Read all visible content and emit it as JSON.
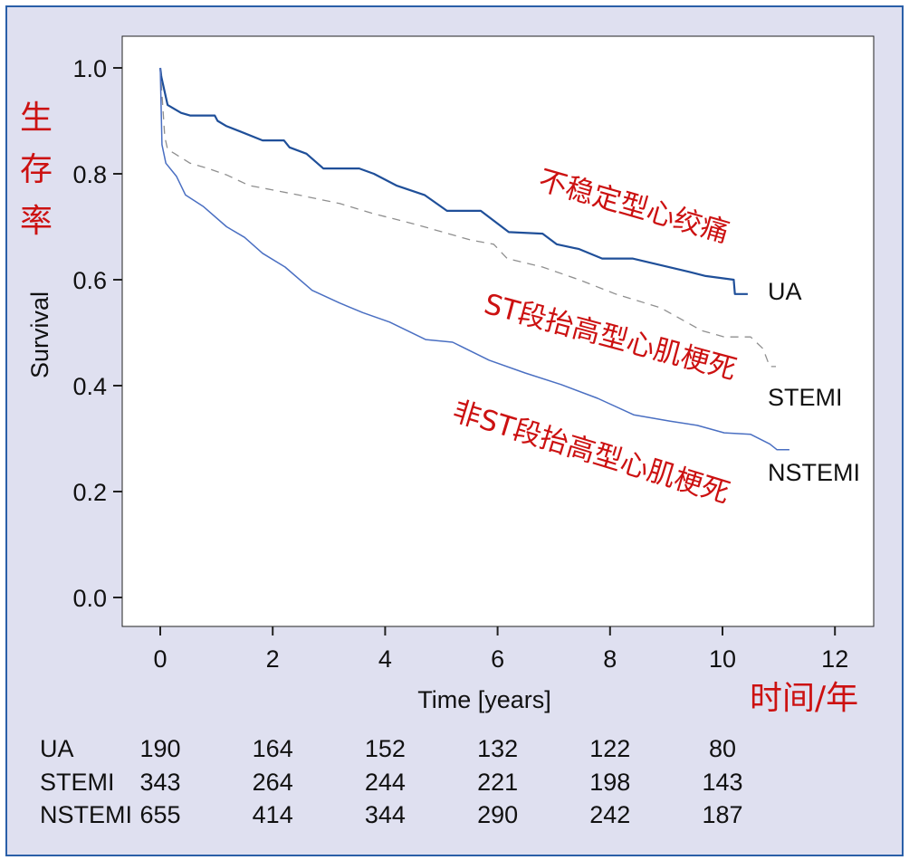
{
  "chart_data": {
    "type": "line",
    "xlabel": "Time [years]",
    "ylabel": "Survival",
    "xlabel_cn": "时间/年",
    "ylabel_cn": "生存率",
    "xlim": [
      -0.75,
      12.7
    ],
    "ylim": [
      -0.055,
      1.06
    ],
    "xticks": [
      "0",
      "2",
      "4",
      "6",
      "8",
      "10",
      "12"
    ],
    "xtick_values": [
      0,
      2,
      4,
      6,
      8,
      10,
      12
    ],
    "yticks": [
      "0.0",
      "0.2",
      "0.4",
      "0.6",
      "0.8",
      "1.0"
    ],
    "ytick_values": [
      0,
      0.2,
      0.4,
      0.6,
      0.8,
      1.0
    ],
    "grid": false,
    "series": [
      {
        "name": "UA",
        "label_cn": "不稳定型心绞痛",
        "color": "#1f4f99",
        "style": "solid",
        "x": [
          0,
          0.02,
          0.13,
          0.37,
          0.53,
          0.97,
          1.02,
          1.18,
          1.42,
          1.82,
          2.2,
          2.3,
          2.6,
          2.9,
          3.54,
          3.8,
          4.2,
          4.7,
          5.1,
          5.7,
          6.2,
          6.8,
          7.05,
          7.45,
          7.86,
          8.4,
          9.4,
          9.7,
          10.2,
          10.22,
          10.45
        ],
        "y": [
          1.0,
          0.983,
          0.93,
          0.915,
          0.91,
          0.91,
          0.9,
          0.89,
          0.88,
          0.863,
          0.863,
          0.85,
          0.838,
          0.81,
          0.81,
          0.8,
          0.778,
          0.76,
          0.73,
          0.73,
          0.69,
          0.687,
          0.667,
          0.658,
          0.64,
          0.64,
          0.615,
          0.607,
          0.6,
          0.573,
          0.573
        ]
      },
      {
        "name": "STEMI",
        "label_cn": "ST段抬高型心肌梗死",
        "color": "#8f8f8f",
        "style": "dashed",
        "x": [
          0,
          0.08,
          0.13,
          0.26,
          0.53,
          0.85,
          1.18,
          1.58,
          1.98,
          2.46,
          3.19,
          3.75,
          4.56,
          5.52,
          5.93,
          6.17,
          6.8,
          7.45,
          8.1,
          8.9,
          9.63,
          10.03,
          10.5,
          10.72,
          10.84,
          10.95
        ],
        "y": [
          1.0,
          0.87,
          0.846,
          0.838,
          0.82,
          0.81,
          0.798,
          0.778,
          0.77,
          0.76,
          0.744,
          0.726,
          0.704,
          0.675,
          0.667,
          0.64,
          0.624,
          0.6,
          0.573,
          0.547,
          0.504,
          0.492,
          0.492,
          0.47,
          0.436,
          0.436
        ]
      },
      {
        "name": "NSTEMI",
        "label_cn": "非ST段抬高型心肌梗死",
        "color": "#4a6fc2",
        "style": "solid",
        "x": [
          0,
          0.03,
          0.1,
          0.29,
          0.45,
          0.77,
          1.18,
          1.5,
          1.82,
          2.22,
          2.7,
          3.19,
          3.6,
          4.08,
          4.72,
          5.2,
          5.85,
          6.49,
          7.13,
          7.78,
          8.42,
          9.07,
          9.55,
          10.03,
          10.5,
          10.84,
          10.97,
          11.19
        ],
        "y": [
          1.0,
          0.855,
          0.82,
          0.795,
          0.76,
          0.738,
          0.7,
          0.68,
          0.65,
          0.624,
          0.58,
          0.556,
          0.538,
          0.52,
          0.487,
          0.482,
          0.448,
          0.424,
          0.402,
          0.376,
          0.345,
          0.333,
          0.325,
          0.311,
          0.308,
          0.29,
          0.279,
          0.279
        ]
      }
    ],
    "risk_table": {
      "times": [
        0,
        2,
        4,
        6,
        8,
        10
      ],
      "rows": [
        {
          "label": "UA",
          "values": [
            "190",
            "164",
            "152",
            "132",
            "122",
            "80"
          ]
        },
        {
          "label": "STEMI",
          "values": [
            "343",
            "264",
            "244",
            "221",
            "198",
            "143"
          ]
        },
        {
          "label": "NSTEMI",
          "values": [
            "655",
            "414",
            "344",
            "290",
            "242",
            "187"
          ]
        }
      ]
    }
  },
  "colors": {
    "background": "#dfe0f0",
    "frame": "#2a5fa8",
    "plot_bg": "#ffffff",
    "annotation": "#cc1111"
  }
}
